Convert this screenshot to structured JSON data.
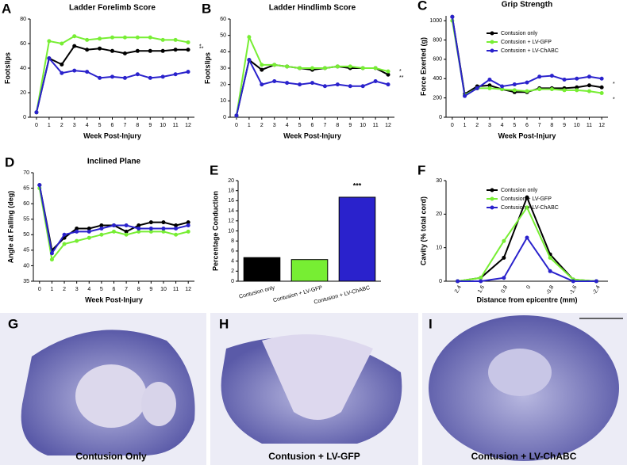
{
  "chart_data": [
    {
      "type": "line",
      "label": "A",
      "title": "Ladder Forelimb Score",
      "xlabel": "Week Post-Injury",
      "ylabel": "Footslips",
      "x": [
        0,
        1,
        2,
        3,
        4,
        5,
        6,
        7,
        8,
        9,
        10,
        11,
        12
      ],
      "xlim": [
        -0.5,
        12.5
      ],
      "xticks": [
        0,
        1,
        2,
        3,
        4,
        5,
        6,
        7,
        8,
        9,
        10,
        11,
        12
      ],
      "ylim": [
        0,
        80
      ],
      "yticks": [
        0,
        20,
        40,
        60,
        80
      ],
      "annotations": [
        "*",
        "**"
      ],
      "series": [
        {
          "name": "Contusion only",
          "color": "#000000",
          "values": [
            4,
            48,
            43,
            58,
            55,
            56,
            54,
            52,
            54,
            54,
            54,
            55,
            55
          ]
        },
        {
          "name": "Contusion + LV-GFP",
          "color": "#77ee33",
          "values": [
            4,
            62,
            60,
            66,
            63,
            64,
            65,
            65,
            65,
            65,
            63,
            63,
            61
          ]
        },
        {
          "name": "Contusion + LV-ChABC",
          "color": "#2a22cc",
          "values": [
            4,
            48,
            36,
            38,
            37,
            32,
            33,
            32,
            35,
            32,
            33,
            35,
            37
          ]
        }
      ]
    },
    {
      "type": "line",
      "label": "B",
      "title": "Ladder Hindlimb Score",
      "xlabel": "Week Post-Injury",
      "ylabel": "Footslips",
      "x": [
        0,
        1,
        2,
        3,
        4,
        5,
        6,
        7,
        8,
        9,
        10,
        11,
        12
      ],
      "xlim": [
        -0.5,
        12.5
      ],
      "xticks": [
        0,
        1,
        2,
        3,
        4,
        5,
        6,
        7,
        8,
        9,
        10,
        11,
        12
      ],
      "ylim": [
        0,
        60
      ],
      "yticks": [
        0,
        10,
        20,
        30,
        40,
        50,
        60
      ],
      "annotations": [
        "*",
        "**"
      ],
      "series": [
        {
          "name": "Contusion only",
          "color": "#000000",
          "values": [
            1,
            35,
            29,
            32,
            31,
            30,
            29,
            30,
            31,
            30,
            30,
            30,
            26
          ]
        },
        {
          "name": "Contusion + LV-GFP",
          "color": "#77ee33",
          "values": [
            1,
            49,
            32,
            32,
            31,
            30,
            30,
            30,
            31,
            31,
            30,
            30,
            28
          ]
        },
        {
          "name": "Contusion + LV-ChABC",
          "color": "#2a22cc",
          "values": [
            1,
            35,
            20,
            22,
            21,
            20,
            21,
            19,
            20,
            19,
            19,
            22,
            20
          ]
        }
      ]
    },
    {
      "type": "line",
      "label": "C",
      "title": "Grip Strength",
      "xlabel": "Week Post-Injury",
      "ylabel": "Force Exerted (g)",
      "legend": "upper right",
      "x": [
        0,
        1,
        2,
        3,
        4,
        5,
        6,
        7,
        8,
        9,
        10,
        11,
        12
      ],
      "xlim": [
        -0.5,
        12.5
      ],
      "xticks": [
        0,
        1,
        2,
        3,
        4,
        5,
        6,
        7,
        8,
        9,
        10,
        11,
        12
      ],
      "ylim": [
        0,
        1050
      ],
      "yticks": [
        0,
        200,
        400,
        600,
        800,
        1000
      ],
      "annotations": [
        "*",
        "*"
      ],
      "series": [
        {
          "name": "Contusion only",
          "color": "#000000",
          "values": [
            1040,
            240,
            320,
            330,
            290,
            260,
            260,
            300,
            300,
            300,
            310,
            330,
            310
          ]
        },
        {
          "name": "Contusion + LV-GFP",
          "color": "#77ee33",
          "values": [
            1000,
            230,
            300,
            300,
            290,
            280,
            270,
            290,
            290,
            280,
            280,
            270,
            250
          ]
        },
        {
          "name": "Contusion + LV-ChABC",
          "color": "#2a22cc",
          "values": [
            1040,
            220,
            300,
            390,
            320,
            340,
            360,
            420,
            430,
            390,
            400,
            420,
            400
          ]
        }
      ]
    },
    {
      "type": "line",
      "label": "D",
      "title": "Inclined Plane",
      "xlabel": "Week Post-Injury",
      "ylabel": "Angle at Falling (deg)",
      "x": [
        0,
        1,
        2,
        3,
        4,
        5,
        6,
        7,
        8,
        9,
        10,
        11,
        12
      ],
      "xlim": [
        -0.5,
        12.5
      ],
      "xticks": [
        0,
        1,
        2,
        3,
        4,
        5,
        6,
        7,
        8,
        9,
        10,
        11,
        12
      ],
      "ylim": [
        35,
        70
      ],
      "yticks": [
        35,
        40,
        45,
        50,
        55,
        60,
        65,
        70
      ],
      "series": [
        {
          "name": "Contusion only",
          "color": "#000000",
          "values": [
            66,
            45,
            49,
            52,
            52,
            53,
            53,
            51,
            53,
            54,
            54,
            53,
            54
          ]
        },
        {
          "name": "Contusion + LV-GFP",
          "color": "#77ee33",
          "values": [
            65,
            42,
            47,
            48,
            49,
            50,
            51,
            50,
            51,
            51,
            51,
            50,
            51
          ]
        },
        {
          "name": "Contusion + LV-ChABC",
          "color": "#2a22cc",
          "values": [
            66,
            44,
            50,
            51,
            51,
            52,
            53,
            53,
            52,
            52,
            52,
            52,
            53
          ]
        }
      ]
    },
    {
      "type": "bar",
      "label": "E",
      "ylabel": "Percentage Conduction",
      "categories": [
        "Contusion only",
        "Contusion + LV-GFP",
        "Contusion + LV-ChABC"
      ],
      "values": [
        4.7,
        4.3,
        16.7
      ],
      "colors": [
        "#000000",
        "#77ee33",
        "#2a22cc"
      ],
      "ylim": [
        0,
        20
      ],
      "yticks": [
        0,
        2,
        4,
        6,
        8,
        10,
        12,
        14,
        16,
        18,
        20
      ],
      "annotations": [
        "***"
      ]
    },
    {
      "type": "category-line",
      "label": "F",
      "xlabel": "Distance from epicentre (mm)",
      "ylabel": "Cavity (% total cord)",
      "legend": "upper right",
      "categories": [
        "2.4",
        "1.6",
        "0.8",
        "0",
        "-0.8",
        "-1.6",
        "-2.4"
      ],
      "ylim": [
        0,
        30
      ],
      "yticks": [
        0,
        10,
        20,
        30
      ],
      "series": [
        {
          "name": "Contusion only",
          "color": "#000000",
          "values": [
            0,
            1,
            7,
            25,
            8,
            0.5,
            0
          ]
        },
        {
          "name": "Contusion + LV-GFP",
          "color": "#77ee33",
          "values": [
            0,
            1,
            12,
            22,
            7,
            0.5,
            0
          ]
        },
        {
          "name": "Contusion + LV-ChABC",
          "color": "#2a22cc",
          "values": [
            0,
            0,
            1,
            13,
            3,
            0,
            0
          ]
        }
      ]
    }
  ],
  "images": [
    {
      "label": "G",
      "caption": "Contusion Only"
    },
    {
      "label": "H",
      "caption": "Contusion + LV-GFP"
    },
    {
      "label": "I",
      "caption": "Contusion + LV-ChABC"
    }
  ]
}
